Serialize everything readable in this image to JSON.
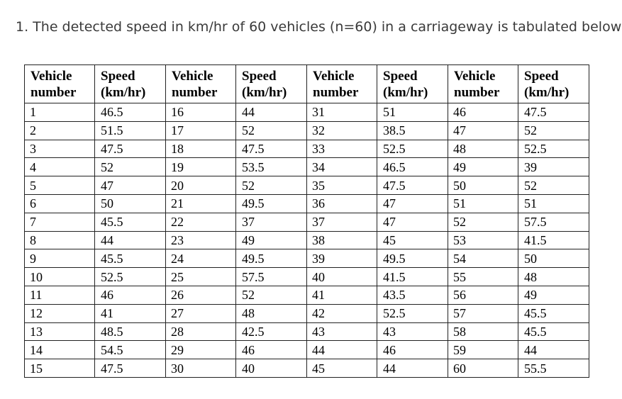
{
  "question": {
    "text": "1. The detected speed in km/hr of 60 vehicles (n=60) in a carriageway is tabulated below:"
  },
  "table": {
    "header_vehicle": [
      "Vehicle",
      "number"
    ],
    "header_speed": [
      "Speed",
      "(km/hr)"
    ],
    "rows": [
      [
        [
          "1",
          "46.5"
        ],
        [
          "16",
          "44"
        ],
        [
          "31",
          "51"
        ],
        [
          "46",
          "47.5"
        ]
      ],
      [
        [
          "2",
          "51.5"
        ],
        [
          "17",
          "52"
        ],
        [
          "32",
          "38.5"
        ],
        [
          "47",
          "52"
        ]
      ],
      [
        [
          "3",
          "47.5"
        ],
        [
          "18",
          "47.5"
        ],
        [
          "33",
          "52.5"
        ],
        [
          "48",
          "52.5"
        ]
      ],
      [
        [
          "4",
          "52"
        ],
        [
          "19",
          "53.5"
        ],
        [
          "34",
          "46.5"
        ],
        [
          "49",
          "39"
        ]
      ],
      [
        [
          "5",
          "47"
        ],
        [
          "20",
          "52"
        ],
        [
          "35",
          "47.5"
        ],
        [
          "50",
          "52"
        ]
      ],
      [
        [
          "6",
          "50"
        ],
        [
          "21",
          "49.5"
        ],
        [
          "36",
          "47"
        ],
        [
          "51",
          "51"
        ]
      ],
      [
        [
          "7",
          "45.5"
        ],
        [
          "22",
          "37"
        ],
        [
          "37",
          "47"
        ],
        [
          "52",
          "57.5"
        ]
      ],
      [
        [
          "8",
          "44"
        ],
        [
          "23",
          "49"
        ],
        [
          "38",
          "45"
        ],
        [
          "53",
          "41.5"
        ]
      ],
      [
        [
          "9",
          "45.5"
        ],
        [
          "24",
          "49.5"
        ],
        [
          "39",
          "49.5"
        ],
        [
          "54",
          "50"
        ]
      ],
      [
        [
          "10",
          "52.5"
        ],
        [
          "25",
          "57.5"
        ],
        [
          "40",
          "41.5"
        ],
        [
          "55",
          "48"
        ]
      ],
      [
        [
          "11",
          "46"
        ],
        [
          "26",
          "52"
        ],
        [
          "41",
          "43.5"
        ],
        [
          "56",
          "49"
        ]
      ],
      [
        [
          "12",
          "41"
        ],
        [
          "27",
          "48"
        ],
        [
          "42",
          "52.5"
        ],
        [
          "57",
          "45.5"
        ]
      ],
      [
        [
          "13",
          "48.5"
        ],
        [
          "28",
          "42.5"
        ],
        [
          "43",
          "43"
        ],
        [
          "58",
          "45.5"
        ]
      ],
      [
        [
          "14",
          "54.5"
        ],
        [
          "29",
          "46"
        ],
        [
          "44",
          "46"
        ],
        [
          "59",
          "44"
        ]
      ],
      [
        [
          "15",
          "47.5"
        ],
        [
          "30",
          "40"
        ],
        [
          "45",
          "44"
        ],
        [
          "60",
          "55.5"
        ]
      ]
    ]
  }
}
